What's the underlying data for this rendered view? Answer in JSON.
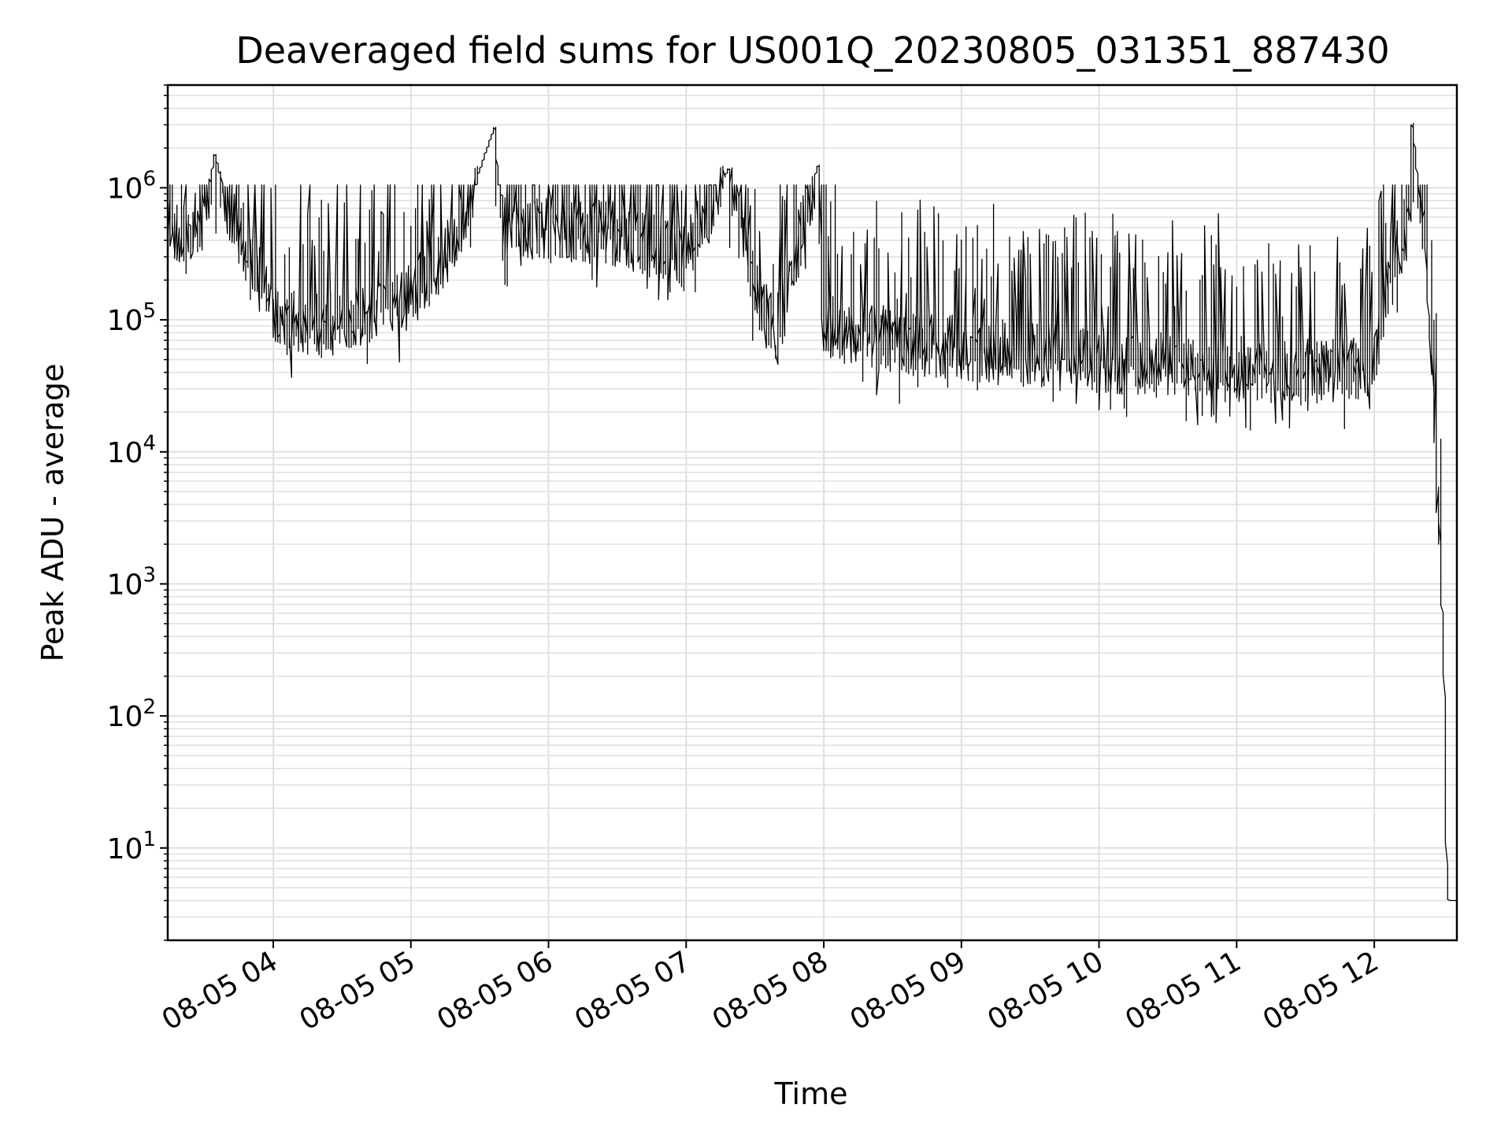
{
  "chart_data": {
    "type": "line",
    "title": "Deaveraged field sums for US001Q_20230805_031351_887430",
    "xlabel": "Time",
    "ylabel": "Peak ADU - average",
    "yscale": "log",
    "grid": true,
    "legend": "none",
    "colors": {
      "line": "#000000",
      "grid": "#e0e0e0",
      "axes": "#000000",
      "background": "#ffffff"
    },
    "xlim": [
      "2023-08-05 03:14",
      "2023-08-05 12:36"
    ],
    "ylim": [
      2,
      6000000
    ],
    "x_ticks": [
      {
        "value": "2023-08-05 04:00",
        "label": "08-05 04"
      },
      {
        "value": "2023-08-05 05:00",
        "label": "08-05 05"
      },
      {
        "value": "2023-08-05 06:00",
        "label": "08-05 06"
      },
      {
        "value": "2023-08-05 07:00",
        "label": "08-05 07"
      },
      {
        "value": "2023-08-05 08:00",
        "label": "08-05 08"
      },
      {
        "value": "2023-08-05 09:00",
        "label": "08-05 09"
      },
      {
        "value": "2023-08-05 10:00",
        "label": "08-05 10"
      },
      {
        "value": "2023-08-05 11:00",
        "label": "08-05 11"
      },
      {
        "value": "2023-08-05 12:00",
        "label": "08-05 12"
      }
    ],
    "y_ticks": [
      {
        "value": 10,
        "base": "10",
        "exp": "1"
      },
      {
        "value": 100,
        "base": "10",
        "exp": "2"
      },
      {
        "value": 1000,
        "base": "10",
        "exp": "3"
      },
      {
        "value": 10000,
        "base": "10",
        "exp": "4"
      },
      {
        "value": 100000,
        "base": "10",
        "exp": "5"
      },
      {
        "value": 1000000,
        "base": "10",
        "exp": "6"
      }
    ],
    "series": [
      {
        "x": [
          "2023-08-05 03:14",
          "2023-08-05 03:20",
          "2023-08-05 03:26",
          "2023-08-05 03:30",
          "2023-08-05 03:33",
          "2023-08-05 03:35",
          "2023-08-05 03:40",
          "2023-08-05 03:50",
          "2023-08-05 04:00",
          "2023-08-05 04:20",
          "2023-08-05 04:40",
          "2023-08-05 05:00",
          "2023-08-05 05:20",
          "2023-08-05 05:37",
          "2023-08-05 05:40",
          "2023-08-05 06:00",
          "2023-08-05 06:30",
          "2023-08-05 07:00",
          "2023-08-05 07:19",
          "2023-08-05 07:30",
          "2023-08-05 07:40",
          "2023-08-05 07:58",
          "2023-08-05 08:00",
          "2023-08-05 08:30",
          "2023-08-05 09:00",
          "2023-08-05 09:30",
          "2023-08-05 10:00",
          "2023-08-05 10:30",
          "2023-08-05 11:00",
          "2023-08-05 11:30",
          "2023-08-05 12:00",
          "2023-08-05 12:05",
          "2023-08-05 12:12",
          "2023-08-05 12:16",
          "2023-08-05 12:17",
          "2023-08-05 12:20",
          "2023-08-05 12:23",
          "2023-08-05 12:26",
          "2023-08-05 12:28",
          "2023-08-05 12:30",
          "2023-08-05 12:31",
          "2023-08-05 12:32",
          "2023-08-05 12:33",
          "2023-08-05 12:36"
        ],
        "y": [
          550000,
          480000,
          520000,
          650000,
          1100000,
          1800000,
          800000,
          300000,
          120000,
          90000,
          110000,
          150000,
          400000,
          2900000,
          500000,
          480000,
          450000,
          300000,
          1400000,
          180000,
          80000,
          1500000,
          90000,
          70000,
          60000,
          55000,
          50000,
          45000,
          42000,
          40000,
          45000,
          150000,
          400000,
          700000,
          3100000,
          900000,
          300000,
          30000,
          5000,
          800,
          150,
          8,
          4,
          4
        ]
      }
    ]
  }
}
